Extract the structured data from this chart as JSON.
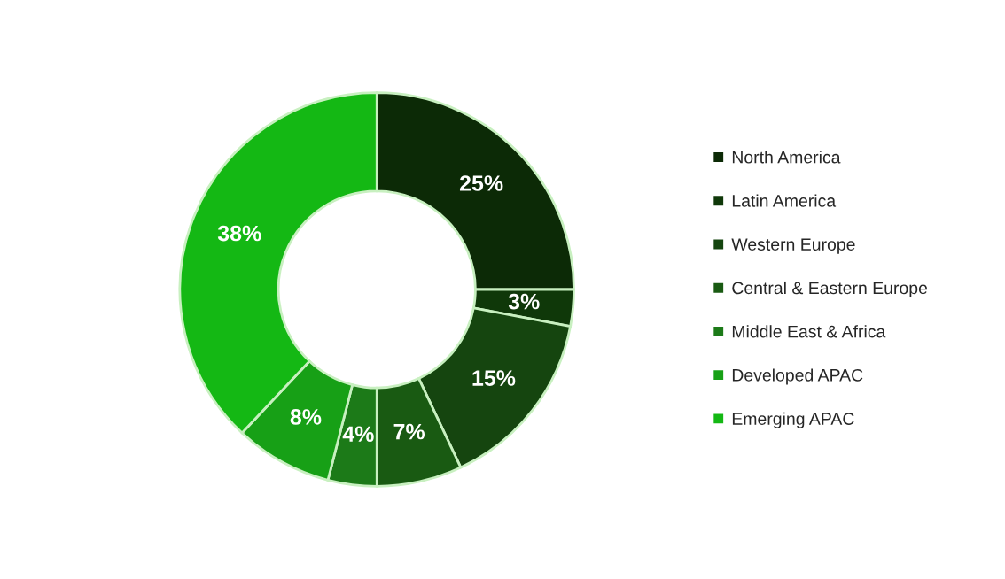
{
  "chart_data": {
    "type": "donut",
    "categories": [
      "North America",
      "Latin America",
      "Western Europe",
      "Central & Eastern Europe",
      "Middle East & Africa",
      "Developed APAC",
      "Emerging APAC"
    ],
    "values": [
      25,
      3,
      15,
      7,
      4,
      8,
      38
    ],
    "colors": [
      "#0c2a06",
      "#0f3809",
      "#15450f",
      "#195a12",
      "#1c7a18",
      "#17a016",
      "#14b814"
    ],
    "value_labels": [
      "25%",
      "3%",
      "15%",
      "7%",
      "4%",
      "8%",
      "38%"
    ],
    "legend": "right"
  }
}
